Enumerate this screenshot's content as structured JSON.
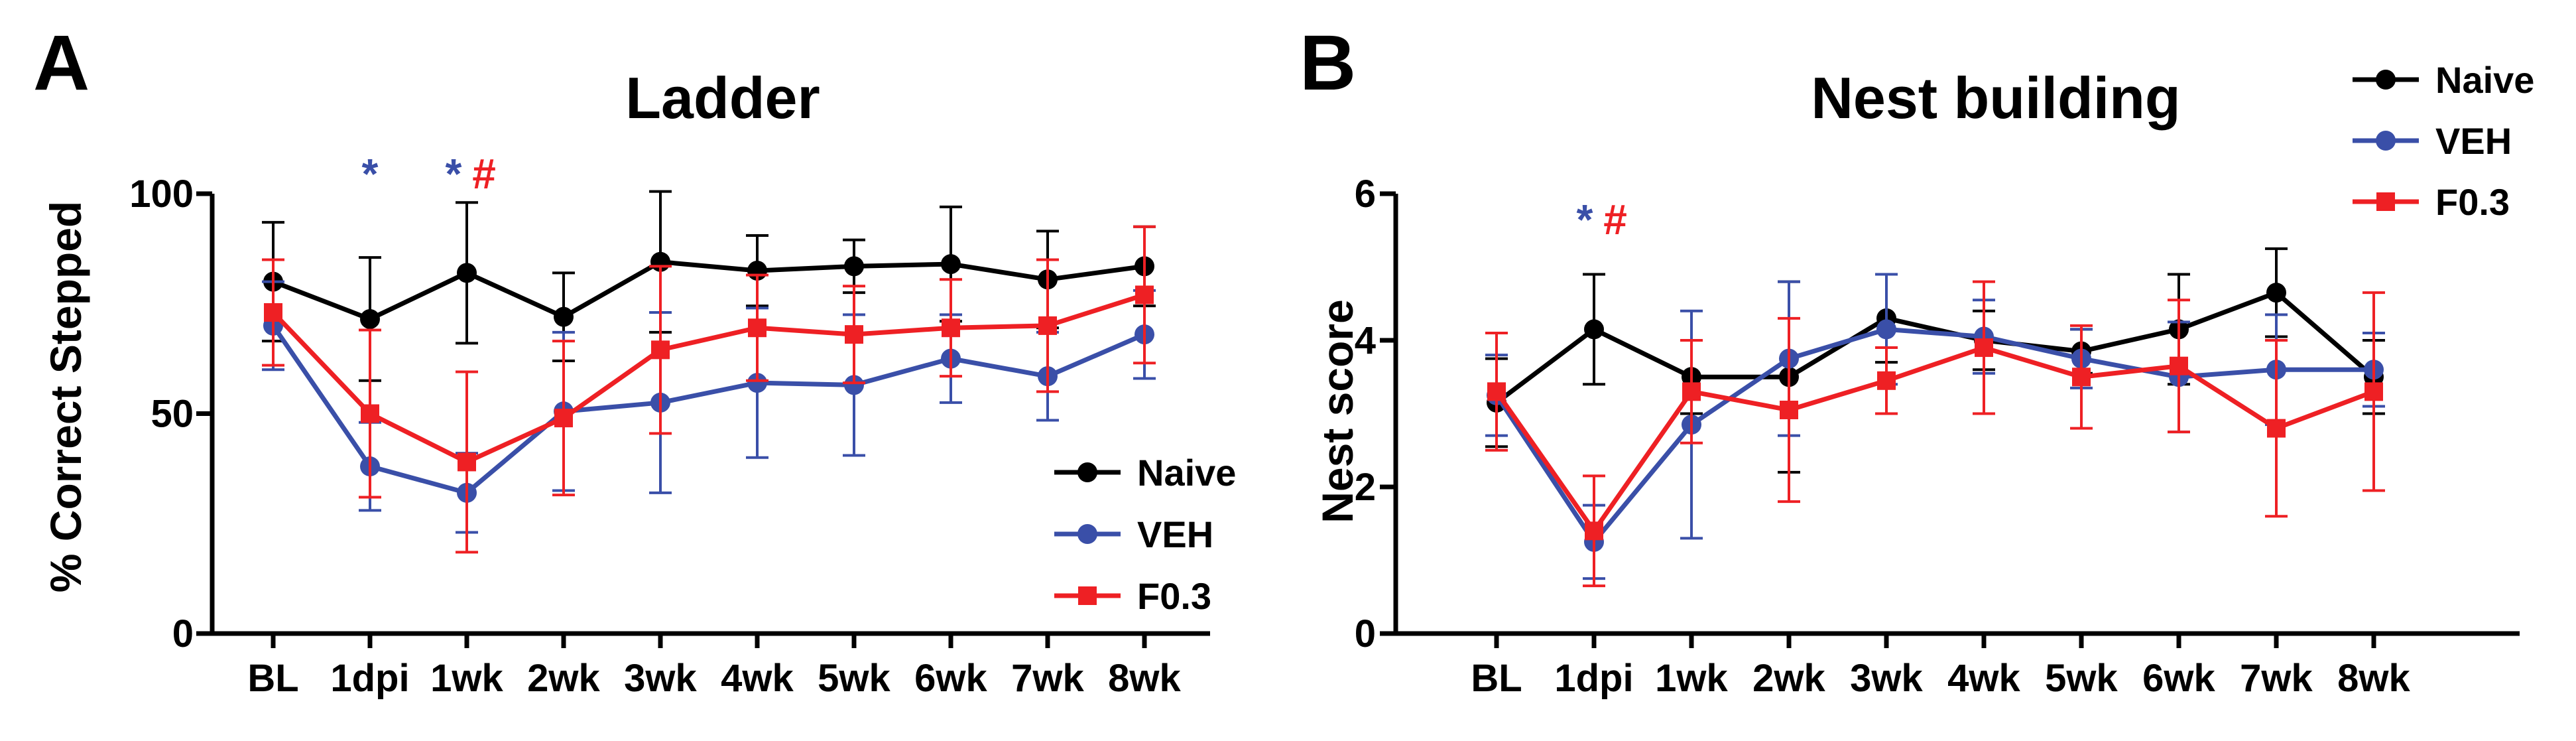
{
  "panels": [
    {
      "letter": "A"
    },
    {
      "letter": "B"
    }
  ],
  "colors": {
    "naive": "#000000",
    "veh": "#3a4fa8",
    "f03": "#ee2024"
  },
  "chart_data": [
    {
      "type": "line",
      "title": "Ladder",
      "xlabel": "",
      "ylabel": "% Correct Stepped",
      "categories": [
        "BL",
        "1dpi",
        "1wk",
        "2wk",
        "3wk",
        "4wk",
        "5wk",
        "6wk",
        "7wk",
        "8wk"
      ],
      "ylim": [
        0,
        100
      ],
      "yticks": [
        0,
        50,
        100
      ],
      "legend_position": "bottom-right",
      "grid": false,
      "series": [
        {
          "name": "Naive",
          "color": "#000000",
          "marker": "circle",
          "values": [
            80,
            71.5,
            82,
            72,
            84.5,
            82.5,
            83.5,
            84,
            80.5,
            83.5
          ],
          "errors": [
            13.5,
            14,
            16,
            10,
            16,
            8,
            6,
            13,
            11,
            9
          ]
        },
        {
          "name": "VEH",
          "color": "#3a4fa8",
          "marker": "circle",
          "values": [
            70,
            38,
            32,
            50.5,
            52.5,
            57,
            56.5,
            62.5,
            58.5,
            68
          ],
          "errors": [
            10,
            10,
            9,
            18,
            20.5,
            17,
            16,
            10,
            10,
            10
          ]
        },
        {
          "name": "F0.3",
          "color": "#ee2024",
          "marker": "square",
          "values": [
            73,
            50,
            39,
            49,
            64.5,
            69.5,
            68,
            69.5,
            70,
            77
          ],
          "errors": [
            12,
            19,
            20.5,
            17.5,
            19,
            12,
            11,
            11,
            15,
            15.5
          ]
        }
      ],
      "annotations": [
        {
          "text": "*",
          "category": "1dpi",
          "color": "#3a4fa8"
        },
        {
          "text": "*",
          "category": "1wk",
          "color": "#3a4fa8"
        },
        {
          "text": "#",
          "category": "1wk",
          "color": "#ee2024"
        }
      ]
    },
    {
      "type": "line",
      "title": "Nest building",
      "xlabel": "",
      "ylabel": "Nest score",
      "categories": [
        "BL",
        "1dpi",
        "1wk",
        "2wk",
        "3wk",
        "4wk",
        "5wk",
        "6wk",
        "7wk",
        "8wk"
      ],
      "ylim": [
        0,
        6
      ],
      "yticks": [
        0,
        2,
        4,
        6
      ],
      "legend_position": "top-right",
      "grid": false,
      "series": [
        {
          "name": "Naive",
          "color": "#000000",
          "marker": "circle",
          "values": [
            3.15,
            4.15,
            3.5,
            3.5,
            4.3,
            4.0,
            3.85,
            4.15,
            4.65,
            3.5
          ],
          "errors": [
            0.6,
            0.75,
            0.5,
            1.3,
            0.6,
            0.4,
            0.3,
            0.75,
            0.6,
            0.5
          ]
        },
        {
          "name": "VEH",
          "color": "#3a4fa8",
          "marker": "circle",
          "values": [
            3.25,
            1.25,
            2.85,
            3.75,
            4.15,
            4.05,
            3.75,
            3.5,
            3.6,
            3.6
          ],
          "errors": [
            0.55,
            0.5,
            1.55,
            1.05,
            0.75,
            0.5,
            0.4,
            0.75,
            0.75,
            0.5
          ]
        },
        {
          "name": "F0.3",
          "color": "#ee2024",
          "marker": "square",
          "values": [
            3.3,
            1.4,
            3.3,
            3.05,
            3.45,
            3.9,
            3.5,
            3.65,
            2.8,
            3.3
          ],
          "errors": [
            0.8,
            0.75,
            0.7,
            1.25,
            0.45,
            0.9,
            0.7,
            0.9,
            1.2,
            1.35
          ]
        }
      ],
      "annotations": [
        {
          "text": "*",
          "category": "1dpi",
          "color": "#3a4fa8"
        },
        {
          "text": "#",
          "category": "1dpi",
          "color": "#ee2024"
        }
      ]
    }
  ]
}
